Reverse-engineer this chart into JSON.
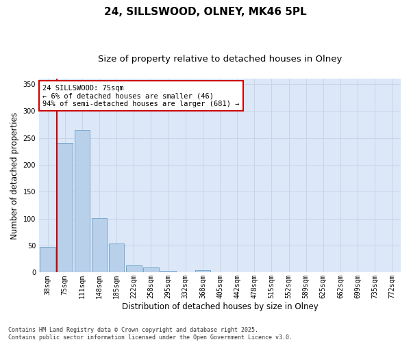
{
  "title": "24, SILLSWOOD, OLNEY, MK46 5PL",
  "subtitle": "Size of property relative to detached houses in Olney",
  "xlabel": "Distribution of detached houses by size in Olney",
  "ylabel": "Number of detached properties",
  "bar_values": [
    47,
    240,
    265,
    101,
    54,
    13,
    9,
    3,
    0,
    4,
    0,
    0,
    0,
    0,
    0,
    0,
    0,
    0,
    0,
    0,
    0
  ],
  "bar_labels": [
    "38sqm",
    "75sqm",
    "111sqm",
    "148sqm",
    "185sqm",
    "222sqm",
    "258sqm",
    "295sqm",
    "332sqm",
    "368sqm",
    "405sqm",
    "442sqm",
    "478sqm",
    "515sqm",
    "552sqm",
    "589sqm",
    "625sqm",
    "662sqm",
    "699sqm",
    "735sqm",
    "772sqm"
  ],
  "bar_color": "#b8d0ea",
  "bar_edge_color": "#6a9fc8",
  "highlight_bar_index": 1,
  "highlight_line_color": "#cc0000",
  "annotation_text": "24 SILLSWOOD: 75sqm\n← 6% of detached houses are smaller (46)\n94% of semi-detached houses are larger (681) →",
  "annotation_box_facecolor": "#ffffff",
  "annotation_box_edgecolor": "#cc0000",
  "ylim": [
    0,
    360
  ],
  "yticks": [
    0,
    50,
    100,
    150,
    200,
    250,
    300,
    350
  ],
  "grid_color": "#c8d4e8",
  "background_color": "#dce8f8",
  "footer_text": "Contains HM Land Registry data © Crown copyright and database right 2025.\nContains public sector information licensed under the Open Government Licence v3.0.",
  "title_fontsize": 11,
  "subtitle_fontsize": 9.5,
  "tick_fontsize": 7,
  "label_fontsize": 8.5,
  "annotation_fontsize": 7.5
}
